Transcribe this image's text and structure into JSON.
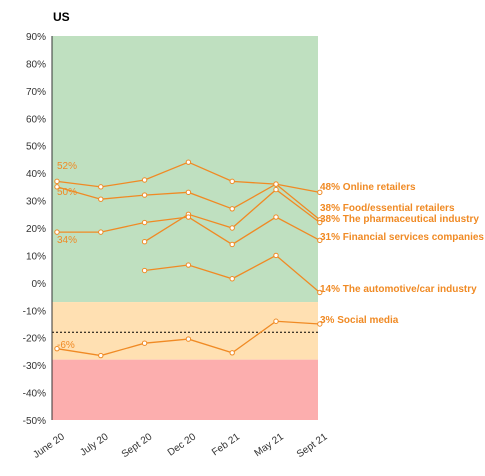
{
  "colors": {
    "accent": "#F08A24",
    "band_positive": "#BFE0C0",
    "band_neutral": "#FFE0B2",
    "band_negative": "#FCAEAE",
    "axis": "#333333"
  },
  "chart_data": {
    "type": "line",
    "region_label": "US",
    "x": [
      "June 20",
      "July 20",
      "Sept 20",
      "Dec 20",
      "Feb 21",
      "May 21",
      "Sept 21"
    ],
    "ylim": [
      -50,
      90
    ],
    "yticks": [
      {
        "value": 90,
        "label": "90%"
      },
      {
        "value": 80,
        "label": "80%"
      },
      {
        "value": 70,
        "label": "70%"
      },
      {
        "value": 60,
        "label": "60%"
      },
      {
        "value": 50,
        "label": "50%"
      },
      {
        "value": 40,
        "label": "40%"
      },
      {
        "value": 30,
        "label": "30%"
      },
      {
        "value": 20,
        "label": "20%"
      },
      {
        "value": 10,
        "label": "10%"
      },
      {
        "value": 0,
        "label": "0%"
      },
      {
        "value": -10,
        "label": "-10%"
      },
      {
        "value": -20,
        "label": "-20%"
      },
      {
        "value": -30,
        "label": "-30%"
      },
      {
        "value": -40,
        "label": "-40%"
      },
      {
        "value": -50,
        "label": "-50%"
      }
    ],
    "bands": [
      {
        "from": -7,
        "to": 90,
        "color": "#BFE0C0"
      },
      {
        "from": -28,
        "to": -7,
        "color": "#FFE0B2"
      },
      {
        "from": -50,
        "to": -28,
        "color": "#FCAEAE"
      }
    ],
    "reference_line": -18,
    "series": [
      {
        "name": "Online retailers",
        "values": [
          37,
          35,
          37.5,
          44,
          37,
          36,
          33
        ],
        "start_label": "52%",
        "end_label": "48% Online retailers"
      },
      {
        "name": "Food/essential retailers",
        "values": [
          35,
          30.5,
          32,
          33,
          27,
          36,
          23
        ],
        "start_label": "50%",
        "end_label": "38% Food/essential retailers"
      },
      {
        "name": "The pharmaceutical industry",
        "values": [
          null,
          null,
          15,
          25,
          20,
          34,
          22
        ],
        "start_label": "",
        "end_label": "38% The pharmaceutical industry"
      },
      {
        "name": "Financial services companies",
        "values": [
          18.5,
          18.5,
          22,
          24,
          14,
          24,
          15.5
        ],
        "start_label": "34%",
        "end_label": "31% Financial services companies"
      },
      {
        "name": "The automotive/car industry",
        "values": [
          null,
          null,
          4.5,
          6.5,
          1.5,
          10,
          -3.5
        ],
        "start_label": "",
        "end_label": "14% The automotive/car industry"
      },
      {
        "name": "Social media",
        "values": [
          -24,
          -26.5,
          -22,
          -20.5,
          -25.5,
          -14,
          -15
        ],
        "start_label": "-6%",
        "end_label": "3% Social media"
      }
    ]
  }
}
